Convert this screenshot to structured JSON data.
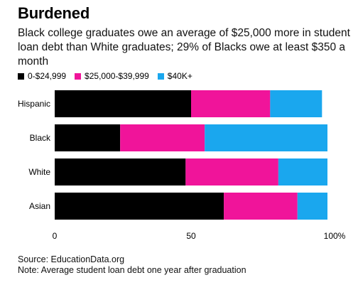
{
  "header": {
    "title": "Burdened",
    "subtitle": "Black college graduates owe an average of $25,000 more in student loan debt than White graduates; 29% of Blacks owe at least $350 a month"
  },
  "footer": {
    "source": "Source: EducationData.org",
    "note": "Note: Average student loan debt one year after graduation"
  },
  "colors": {
    "low": "#000000",
    "mid": "#f0149a",
    "high": "#1aa7ee"
  },
  "chart_data": {
    "type": "bar",
    "orientation": "horizontal",
    "stacked": true,
    "categories": [
      "Hispanic",
      "Black",
      "White",
      "Asian"
    ],
    "series": [
      {
        "name": "0-$24,999",
        "color": "#000000",
        "values": [
          50,
          24,
          48,
          62
        ]
      },
      {
        "name": "$25,000-$39,999",
        "color": "#f0149a",
        "values": [
          29,
          31,
          34,
          27
        ]
      },
      {
        "name": "$40K+",
        "color": "#1aa7ee",
        "values": [
          19,
          45,
          18,
          11
        ]
      }
    ],
    "xlim": [
      0,
      100
    ],
    "xticks": [
      {
        "value": 0,
        "label": "0"
      },
      {
        "value": 50,
        "label": "50"
      },
      {
        "value": 100,
        "label": "100%"
      }
    ],
    "grid": false,
    "legend_position": "top-left"
  }
}
